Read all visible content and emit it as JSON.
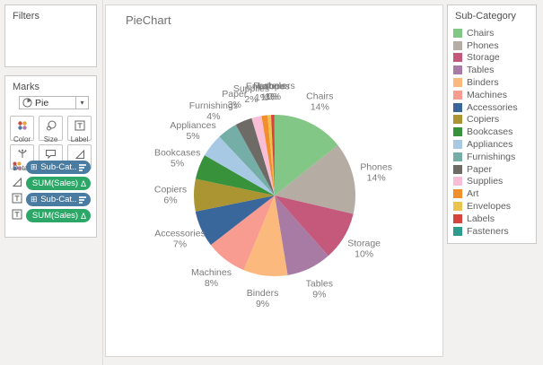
{
  "sheet": {
    "title": "PieChart"
  },
  "filters": {
    "title": "Filters"
  },
  "marks": {
    "title": "Marks",
    "mark_type": "Pie",
    "caret": "▾",
    "buttons": [
      {
        "label": "Color",
        "icon": "color-icon"
      },
      {
        "label": "Size",
        "icon": "size-icon"
      },
      {
        "label": "Label",
        "icon": "label-icon"
      },
      {
        "label": "Detail",
        "icon": "detail-icon"
      },
      {
        "label": "Tooltip",
        "icon": "tooltip-icon"
      },
      {
        "label": "Angle",
        "icon": "angle-icon"
      }
    ],
    "pills": [
      {
        "text": "Sub-Cat..",
        "prefix": "⊞",
        "left_icon": "color-marks-icon",
        "suffix_icon": "sort-legend-icon",
        "color": "#4A7CA2",
        "kind": "dimension"
      },
      {
        "text": "SUM(Sales)",
        "prefix": "",
        "left_icon": "angle-icon",
        "suffix": "Δ",
        "color": "#2DA768",
        "kind": "measure"
      },
      {
        "text": "Sub-Cat..",
        "prefix": "⊞",
        "left_icon": "text-icon",
        "suffix_icon": "sort-legend-icon",
        "color": "#4A7CA2",
        "kind": "dimension"
      },
      {
        "text": "SUM(Sales)",
        "prefix": "",
        "left_icon": "text-icon",
        "suffix": "Δ",
        "color": "#2DA768",
        "kind": "measure"
      }
    ]
  },
  "legend": {
    "title": "Sub-Category",
    "items": [
      {
        "label": "Chairs",
        "color": "#82C785"
      },
      {
        "label": "Phones",
        "color": "#B5ACA4"
      },
      {
        "label": "Storage",
        "color": "#C4597C"
      },
      {
        "label": "Tables",
        "color": "#A87BA5"
      },
      {
        "label": "Binders",
        "color": "#FCB97D"
      },
      {
        "label": "Machines",
        "color": "#F89B90"
      },
      {
        "label": "Accessories",
        "color": "#39679B"
      },
      {
        "label": "Copiers",
        "color": "#AB9532"
      },
      {
        "label": "Bookcases",
        "color": "#38913B"
      },
      {
        "label": "Appliances",
        "color": "#A8C9E4"
      },
      {
        "label": "Furnishings",
        "color": "#74AEA6"
      },
      {
        "label": "Paper",
        "color": "#6E6A66"
      },
      {
        "label": "Supplies",
        "color": "#F9BED6"
      },
      {
        "label": "Art",
        "color": "#F28E2C"
      },
      {
        "label": "Envelopes",
        "color": "#EBC44E"
      },
      {
        "label": "Labels",
        "color": "#D7433D"
      },
      {
        "label": "Fasteners",
        "color": "#2D9C8E"
      }
    ]
  },
  "chart_data": {
    "type": "pie",
    "title": "PieChart",
    "categories": [
      "Chairs",
      "Phones",
      "Storage",
      "Tables",
      "Binders",
      "Machines",
      "Accessories",
      "Copiers",
      "Bookcases",
      "Appliances",
      "Furnishings",
      "Paper",
      "Supplies",
      "Art",
      "Envelopes",
      "Labels",
      "Fasteners"
    ],
    "values": [
      14.3,
      14.4,
      9.75,
      9.0,
      8.85,
      8.25,
      7.3,
      6.5,
      5.0,
      4.7,
      4.0,
      3.4,
      2.0,
      1.2,
      0.7,
      0.55,
      0.15
    ],
    "percent_labels": [
      "14%",
      "14%",
      "10%",
      "9%",
      "9%",
      "8%",
      "7%",
      "6%",
      "5%",
      "5%",
      "4%",
      "3%",
      "2%",
      "1%",
      "1%",
      "1%",
      "0%"
    ],
    "colors": [
      "#82C785",
      "#B5ACA4",
      "#C4597C",
      "#A87BA5",
      "#FCB97D",
      "#F89B90",
      "#39679B",
      "#AB9532",
      "#38913B",
      "#A8C9E4",
      "#74AEA6",
      "#6E6A66",
      "#F9BED6",
      "#F28E2C",
      "#EBC44E",
      "#D7433D",
      "#2D9C8E"
    ],
    "start_angle_deg": 0,
    "direction": "clockwise",
    "legend_position": "right",
    "label_format": "category + percent, outside slices"
  }
}
